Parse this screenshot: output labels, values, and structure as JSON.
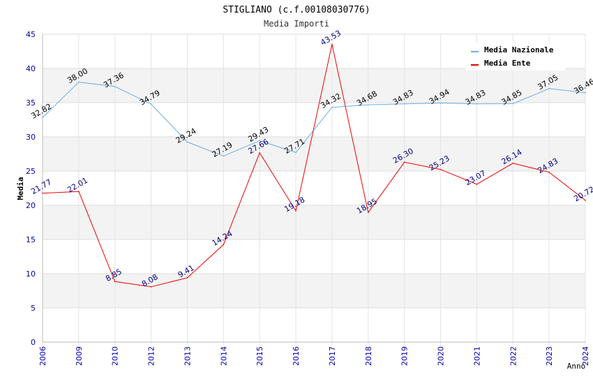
{
  "chart_data": {
    "type": "line",
    "title": "STIGLIANO (c.f.00108030776)",
    "subtitle": "Media Importi",
    "xlabel": "Anno",
    "ylabel": "Media",
    "ylim": [
      0,
      45
    ],
    "yticks": [
      0,
      5,
      10,
      15,
      20,
      25,
      30,
      35,
      40,
      45
    ],
    "grid": true,
    "legend_position": "top-right",
    "categories": [
      "2006",
      "2009",
      "2010",
      "2012",
      "2013",
      "2014",
      "2015",
      "2016",
      "2017",
      "2018",
      "2019",
      "2020",
      "2021",
      "2022",
      "2023",
      "2024"
    ],
    "series": [
      {
        "name": "Media Nazionale",
        "color": "#6aaee8",
        "label_color": "#000000",
        "values": [
          32.82,
          38.0,
          37.36,
          34.79,
          29.24,
          27.19,
          29.43,
          27.71,
          34.32,
          34.68,
          34.83,
          34.94,
          34.83,
          34.85,
          37.05,
          36.46
        ],
        "labels": [
          "32.82",
          "38.00",
          "37.36",
          "34.79",
          "29.24",
          "27.19",
          "29.43",
          "27.71",
          "34.32",
          "34.68",
          "34.83",
          "34.94",
          "34.83",
          "34.85",
          "37.05",
          "36.46"
        ]
      },
      {
        "name": "Media Ente",
        "color": "#ee0000",
        "label_color": "#000080",
        "values": [
          21.77,
          22.01,
          8.85,
          8.08,
          9.41,
          14.24,
          27.66,
          19.18,
          43.53,
          18.95,
          26.3,
          25.23,
          23.07,
          26.14,
          24.83,
          20.72
        ],
        "labels": [
          "21.77",
          "22.01",
          "8.85",
          "8.08",
          "9.41",
          "14.24",
          "27.66",
          "19.18",
          "43.53",
          "18.95",
          "26.30",
          "25.23",
          "23.07",
          "26.14",
          "24.83",
          "20.72"
        ]
      }
    ]
  }
}
